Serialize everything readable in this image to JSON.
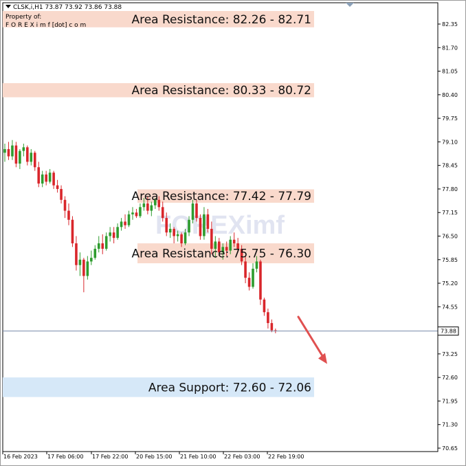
{
  "header": {
    "symbol_line": "CLSK,i,H1  73.87 73.92 73.86 73.88",
    "property_label": "Property of:",
    "brand_line": "F O R E X i m f [dot] c o m"
  },
  "watermark": "FOREXimf",
  "current_price": "73.88",
  "colors": {
    "bull": "#2e9c2e",
    "bear": "#d9262b",
    "resistance_band": "#f9d9cc",
    "support_band": "#d6e8f8",
    "arrow": "#e05050",
    "price_line": "#7788aa"
  },
  "chart_data": {
    "type": "candlestick",
    "symbol": "CLSK",
    "timeframe": "H1",
    "ylim": [
      70.65,
      82.6
    ],
    "y_ticks": [
      "82.35",
      "81.70",
      "81.05",
      "80.40",
      "79.75",
      "79.10",
      "78.45",
      "77.80",
      "77.15",
      "76.50",
      "75.85",
      "75.20",
      "74.55",
      "73.90",
      "73.25",
      "72.60",
      "71.95",
      "71.30",
      "70.65"
    ],
    "x_ticks": [
      "16 Feb 2023",
      "17 Feb 06:00",
      "17 Feb 22:00",
      "20 Feb 15:00",
      "21 Feb 10:00",
      "22 Feb 03:00",
      "22 Feb 19:00"
    ],
    "zones": [
      {
        "label": "Area Resistance: 82.26 - 82.71",
        "low": 82.26,
        "high": 82.71,
        "kind": "resistance"
      },
      {
        "label": "Area Resistance: 80.33 - 80.72",
        "low": 80.33,
        "high": 80.72,
        "kind": "resistance"
      },
      {
        "label": "Area Resistance: 77.42 - 77.79",
        "low": 77.42,
        "high": 77.79,
        "kind": "resistance"
      },
      {
        "label": "Area Resistance: 75.75 - 76.30",
        "low": 75.75,
        "high": 76.3,
        "kind": "resistance"
      },
      {
        "label": "Area Support: 72.60 - 72.06",
        "low": 72.06,
        "high": 72.6,
        "kind": "support"
      }
    ],
    "last_price": 73.88,
    "projection": {
      "from": 74.5,
      "to": 73.2,
      "direction": "down"
    },
    "candles": [
      {
        "o": 78.8,
        "h": 79.05,
        "l": 78.55,
        "c": 78.9
      },
      {
        "o": 78.9,
        "h": 79.1,
        "l": 78.6,
        "c": 78.7
      },
      {
        "o": 78.7,
        "h": 79.15,
        "l": 78.6,
        "c": 79.0
      },
      {
        "o": 79.0,
        "h": 79.1,
        "l": 78.4,
        "c": 78.5
      },
      {
        "o": 78.5,
        "h": 78.9,
        "l": 78.35,
        "c": 78.85
      },
      {
        "o": 78.85,
        "h": 79.05,
        "l": 78.7,
        "c": 78.95
      },
      {
        "o": 78.95,
        "h": 79.0,
        "l": 78.45,
        "c": 78.55
      },
      {
        "o": 78.55,
        "h": 78.9,
        "l": 78.45,
        "c": 78.8
      },
      {
        "o": 78.8,
        "h": 78.85,
        "l": 78.3,
        "c": 78.4
      },
      {
        "o": 78.4,
        "h": 78.55,
        "l": 77.85,
        "c": 77.95
      },
      {
        "o": 77.95,
        "h": 78.3,
        "l": 77.85,
        "c": 78.2
      },
      {
        "o": 78.2,
        "h": 78.3,
        "l": 77.9,
        "c": 78.0
      },
      {
        "o": 78.0,
        "h": 78.35,
        "l": 77.95,
        "c": 78.25
      },
      {
        "o": 78.25,
        "h": 78.3,
        "l": 77.8,
        "c": 77.9
      },
      {
        "o": 77.9,
        "h": 78.05,
        "l": 77.7,
        "c": 77.8
      },
      {
        "o": 77.8,
        "h": 77.9,
        "l": 77.4,
        "c": 77.5
      },
      {
        "o": 77.5,
        "h": 77.6,
        "l": 77.0,
        "c": 77.2
      },
      {
        "o": 77.2,
        "h": 77.4,
        "l": 76.8,
        "c": 76.95
      },
      {
        "o": 76.95,
        "h": 77.05,
        "l": 76.2,
        "c": 76.3
      },
      {
        "o": 76.3,
        "h": 76.5,
        "l": 75.55,
        "c": 75.7
      },
      {
        "o": 75.7,
        "h": 76.05,
        "l": 75.4,
        "c": 75.85
      },
      {
        "o": 75.85,
        "h": 75.9,
        "l": 74.95,
        "c": 75.4
      },
      {
        "o": 75.4,
        "h": 75.95,
        "l": 75.3,
        "c": 75.8
      },
      {
        "o": 75.8,
        "h": 76.1,
        "l": 75.7,
        "c": 75.9
      },
      {
        "o": 75.9,
        "h": 76.25,
        "l": 75.85,
        "c": 76.15
      },
      {
        "o": 76.15,
        "h": 76.5,
        "l": 76.05,
        "c": 76.3
      },
      {
        "o": 76.3,
        "h": 76.55,
        "l": 76.0,
        "c": 76.15
      },
      {
        "o": 76.15,
        "h": 76.6,
        "l": 76.1,
        "c": 76.5
      },
      {
        "o": 76.5,
        "h": 76.75,
        "l": 76.35,
        "c": 76.6
      },
      {
        "o": 76.6,
        "h": 76.75,
        "l": 76.3,
        "c": 76.45
      },
      {
        "o": 76.45,
        "h": 76.85,
        "l": 76.4,
        "c": 76.75
      },
      {
        "o": 76.75,
        "h": 77.0,
        "l": 76.65,
        "c": 76.9
      },
      {
        "o": 76.9,
        "h": 77.1,
        "l": 76.7,
        "c": 76.8
      },
      {
        "o": 76.8,
        "h": 77.2,
        "l": 76.75,
        "c": 77.1
      },
      {
        "o": 77.1,
        "h": 77.3,
        "l": 76.95,
        "c": 77.15
      },
      {
        "o": 77.15,
        "h": 77.25,
        "l": 77.0,
        "c": 77.05
      },
      {
        "o": 77.05,
        "h": 77.4,
        "l": 77.0,
        "c": 77.3
      },
      {
        "o": 77.3,
        "h": 77.55,
        "l": 77.2,
        "c": 77.4
      },
      {
        "o": 77.4,
        "h": 77.6,
        "l": 77.1,
        "c": 77.2
      },
      {
        "o": 77.2,
        "h": 77.45,
        "l": 77.05,
        "c": 77.35
      },
      {
        "o": 77.35,
        "h": 77.55,
        "l": 77.25,
        "c": 77.5
      },
      {
        "o": 77.5,
        "h": 77.6,
        "l": 77.2,
        "c": 77.3
      },
      {
        "o": 77.3,
        "h": 77.45,
        "l": 76.9,
        "c": 77.0
      },
      {
        "o": 77.0,
        "h": 77.15,
        "l": 76.5,
        "c": 76.6
      },
      {
        "o": 76.6,
        "h": 76.85,
        "l": 76.45,
        "c": 76.7
      },
      {
        "o": 76.7,
        "h": 76.75,
        "l": 76.3,
        "c": 76.5
      },
      {
        "o": 76.5,
        "h": 76.65,
        "l": 76.35,
        "c": 76.55
      },
      {
        "o": 76.55,
        "h": 76.6,
        "l": 76.2,
        "c": 76.3
      },
      {
        "o": 76.3,
        "h": 76.7,
        "l": 76.25,
        "c": 76.6
      },
      {
        "o": 76.6,
        "h": 77.05,
        "l": 76.5,
        "c": 76.95
      },
      {
        "o": 76.95,
        "h": 77.5,
        "l": 76.85,
        "c": 77.4
      },
      {
        "o": 77.4,
        "h": 77.5,
        "l": 76.9,
        "c": 77.0
      },
      {
        "o": 77.0,
        "h": 77.1,
        "l": 76.4,
        "c": 76.5
      },
      {
        "o": 76.5,
        "h": 77.3,
        "l": 76.4,
        "c": 77.1
      },
      {
        "o": 77.1,
        "h": 77.25,
        "l": 76.6,
        "c": 76.7
      },
      {
        "o": 76.7,
        "h": 76.9,
        "l": 76.0,
        "c": 76.15
      },
      {
        "o": 76.15,
        "h": 76.5,
        "l": 75.9,
        "c": 76.35
      },
      {
        "o": 76.35,
        "h": 76.45,
        "l": 75.95,
        "c": 76.05
      },
      {
        "o": 76.05,
        "h": 76.3,
        "l": 75.85,
        "c": 76.2
      },
      {
        "o": 76.2,
        "h": 76.35,
        "l": 75.95,
        "c": 76.1
      },
      {
        "o": 76.1,
        "h": 76.5,
        "l": 76.0,
        "c": 76.4
      },
      {
        "o": 76.4,
        "h": 76.6,
        "l": 76.2,
        "c": 76.3
      },
      {
        "o": 76.3,
        "h": 76.45,
        "l": 76.05,
        "c": 76.15
      },
      {
        "o": 76.15,
        "h": 76.25,
        "l": 75.7,
        "c": 75.8
      },
      {
        "o": 75.8,
        "h": 75.95,
        "l": 75.2,
        "c": 75.35
      },
      {
        "o": 75.35,
        "h": 75.5,
        "l": 75.0,
        "c": 75.1
      },
      {
        "o": 75.1,
        "h": 75.75,
        "l": 75.05,
        "c": 75.6
      },
      {
        "o": 75.6,
        "h": 75.95,
        "l": 75.5,
        "c": 75.8
      },
      {
        "o": 75.8,
        "h": 75.85,
        "l": 74.6,
        "c": 74.75
      },
      {
        "o": 74.75,
        "h": 74.8,
        "l": 74.3,
        "c": 74.4
      },
      {
        "o": 74.4,
        "h": 74.5,
        "l": 73.95,
        "c": 74.1
      },
      {
        "o": 74.1,
        "h": 74.2,
        "l": 73.85,
        "c": 73.9
      },
      {
        "o": 73.9,
        "h": 73.95,
        "l": 73.82,
        "c": 73.88
      }
    ]
  }
}
